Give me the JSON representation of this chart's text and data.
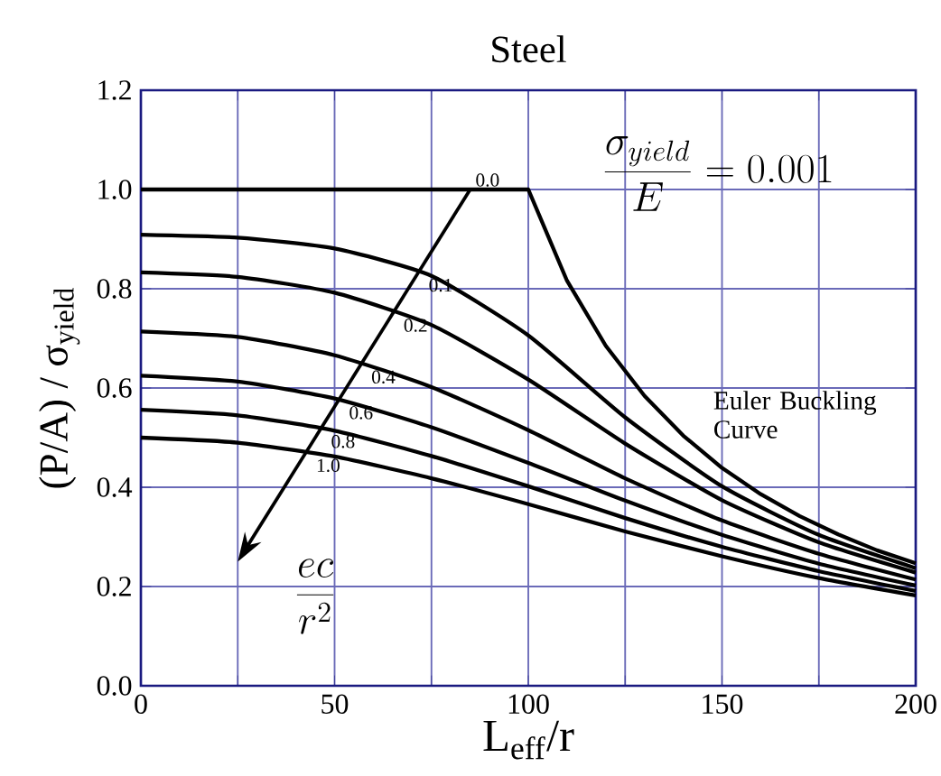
{
  "chart_data": {
    "type": "line",
    "title": "Steel",
    "xlabel": "L$_{eff}$/r",
    "ylabel": "(P/A) / σ$_{yield}$",
    "x": [
      0,
      25,
      50,
      75,
      100,
      125,
      150,
      175,
      200
    ],
    "xlim": [
      0,
      200
    ],
    "ylim": [
      0,
      1.2
    ],
    "xticks": [
      0,
      {
        "value": 25,
        "label": null
      },
      50,
      {
        "value": 75,
        "label": null
      },
      100,
      {
        "value": 125,
        "label": null
      },
      150,
      {
        "value": 175,
        "label": null
      },
      200
    ],
    "yticks": [
      {
        "value": 0,
        "label": "0.0"
      },
      0.2,
      0.4,
      0.6,
      0.8,
      {
        "value": 1,
        "label": "1.0"
      },
      1.2
    ],
    "grid": true,
    "series": [
      {
        "name": "0.0",
        "color": "#000000",
        "x": [
          0,
          100,
          110,
          120,
          130,
          140,
          150,
          160,
          170,
          180,
          190,
          200
        ],
        "values": [
          1.0,
          1.0,
          0.816,
          0.685,
          0.584,
          0.504,
          0.439,
          0.386,
          0.342,
          0.305,
          0.273,
          0.247
        ]
      },
      {
        "name": "0.1",
        "color": "#000000",
        "values": [
          0.909,
          0.903,
          0.881,
          0.826,
          0.706,
          0.541,
          0.402,
          0.304,
          0.237
        ]
      },
      {
        "name": "0.2",
        "color": "#000000",
        "values": [
          0.833,
          0.824,
          0.792,
          0.727,
          0.617,
          0.488,
          0.374,
          0.289,
          0.228
        ]
      },
      {
        "name": "0.4",
        "color": "#000000",
        "values": [
          0.714,
          0.703,
          0.666,
          0.602,
          0.515,
          0.418,
          0.333,
          0.266,
          0.214
        ]
      },
      {
        "name": "0.6",
        "color": "#000000",
        "values": [
          0.625,
          0.613,
          0.579,
          0.521,
          0.449,
          0.373,
          0.304,
          0.246,
          0.202
        ]
      },
      {
        "name": "0.8",
        "color": "#000000",
        "values": [
          0.556,
          0.545,
          0.514,
          0.463,
          0.402,
          0.338,
          0.28,
          0.231,
          0.191
        ]
      },
      {
        "name": "1.0",
        "color": "#000000",
        "values": [
          0.5,
          0.49,
          0.462,
          0.418,
          0.366,
          0.311,
          0.261,
          0.217,
          0.182
        ]
      }
    ],
    "annotations": [
      "Euler Buckling Curve",
      "\\frac{ec}{r^{2}}",
      "\\frac{\\sigma_{yield}}{E} = 0.001"
    ]
  }
}
